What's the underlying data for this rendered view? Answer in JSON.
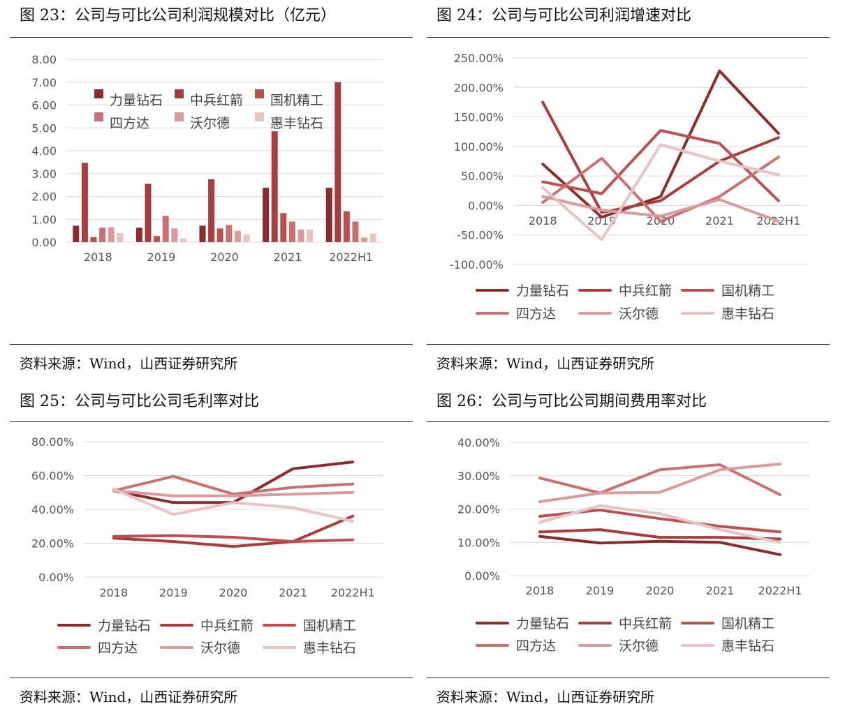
{
  "colors": {
    "s1": "#8b2b2b",
    "s2": "#a93c3c",
    "s3": "#bc5050",
    "s4": "#c97070",
    "s5": "#d99b9b",
    "s6": "#e8c3c3",
    "grid": "#d9d9d9"
  },
  "figures": [
    {
      "title": "图 23：公司与可比公司利润规模对比（亿元）",
      "source": "资料来源：Wind，山西证券研究所",
      "chart_data": {
        "type": "bar",
        "categories": [
          "2018",
          "2019",
          "2020",
          "2021",
          "2022H1"
        ],
        "ylim": [
          0,
          8
        ],
        "ytick_labels": [
          "0.00",
          "1.00",
          "2.00",
          "3.00",
          "4.00",
          "5.00",
          "6.00",
          "7.00",
          "8.00"
        ],
        "series": [
          {
            "name": "力量钻石",
            "values": [
              0.72,
              0.63,
              0.72,
              2.38,
              2.38
            ]
          },
          {
            "name": "中兵红箭",
            "values": [
              3.47,
              2.55,
              2.75,
              4.85,
              7.0
            ]
          },
          {
            "name": "国机精工",
            "values": [
              0.22,
              0.27,
              0.6,
              1.27,
              1.35
            ]
          },
          {
            "name": "四方达",
            "values": [
              0.63,
              1.15,
              0.75,
              0.9,
              0.9
            ]
          },
          {
            "name": "沃尔德",
            "values": [
              0.65,
              0.6,
              0.5,
              0.55,
              0.2
            ]
          },
          {
            "name": "惠丰钻石",
            "values": [
              0.4,
              0.15,
              0.33,
              0.55,
              0.37
            ]
          }
        ],
        "xlabel": "",
        "ylabel": ""
      }
    },
    {
      "title": "图 24：公司与可比公司利润增速对比",
      "source": "资料来源：Wind，山西证券研究所",
      "chart_data": {
        "type": "line",
        "categories": [
          "2018",
          "2019",
          "2020",
          "2021",
          "2022H1"
        ],
        "ylim": [
          -100,
          250
        ],
        "ytick_labels": [
          "-100.00%",
          "-50.00%",
          "0.00%",
          "50.00%",
          "100.00%",
          "150.00%",
          "200.00%",
          "250.00%"
        ],
        "series": [
          {
            "name": "力量钻石",
            "values": [
              70,
              -20,
              15,
              228,
              122
            ]
          },
          {
            "name": "中兵红箭",
            "values": [
              175,
              -12,
              8,
              75,
              115
            ]
          },
          {
            "name": "国机精工",
            "values": [
              40,
              20,
              127,
              105,
              8
            ]
          },
          {
            "name": "四方达",
            "values": [
              5,
              80,
              -27,
              15,
              82
            ]
          },
          {
            "name": "沃尔德",
            "values": [
              15,
              -8,
              -18,
              10,
              -27
            ]
          },
          {
            "name": "惠丰钻石",
            "values": [
              30,
              -58,
              103,
              75,
              52
            ]
          }
        ],
        "xlabel": "",
        "ylabel": ""
      }
    },
    {
      "title": "图 25：公司与可比公司毛利率对比",
      "source": "资料来源：Wind，山西证券研究所",
      "chart_data": {
        "type": "line",
        "categories": [
          "2018",
          "2019",
          "2020",
          "2021",
          "2022H1"
        ],
        "ylim": [
          0,
          80
        ],
        "ytick_labels": [
          "0.00%",
          "20.00%",
          "40.00%",
          "60.00%",
          "80.00%"
        ],
        "series": [
          {
            "name": "力量钻石",
            "values": [
              51,
              44,
              44,
              64,
              68
            ]
          },
          {
            "name": "中兵红箭",
            "values": [
              23,
              21,
              18,
              21,
              36
            ]
          },
          {
            "name": "国机精工",
            "values": [
              24,
              24.5,
              23.5,
              21,
              22
            ]
          },
          {
            "name": "四方达",
            "values": [
              51,
              59.5,
              49,
              53,
              55
            ]
          },
          {
            "name": "沃尔德",
            "values": [
              51,
              48,
              48,
              49,
              50
            ]
          },
          {
            "name": "惠丰钻石",
            "values": [
              52,
              37,
              44,
              41,
              33
            ]
          }
        ],
        "xlabel": "",
        "ylabel": ""
      }
    },
    {
      "title": "图 26：公司与可比公司期间费用率对比",
      "source": "资料来源：Wind，山西证券研究所",
      "chart_data": {
        "type": "line",
        "categories": [
          "2018",
          "2019",
          "2020",
          "2021",
          "2022H1"
        ],
        "ylim": [
          0,
          40
        ],
        "ytick_labels": [
          "0.00%",
          "10.00%",
          "20.00%",
          "30.00%",
          "40.00%"
        ],
        "series": [
          {
            "name": "力量钻石",
            "values": [
              11.8,
              9.8,
              10.3,
              10,
              6.3
            ]
          },
          {
            "name": "中兵红箭",
            "values": [
              13.1,
              13.8,
              11.5,
              11.5,
              11
            ]
          },
          {
            "name": "国机精工",
            "values": [
              17.8,
              19.7,
              17.1,
              14.8,
              13.1
            ]
          },
          {
            "name": "四方达",
            "values": [
              29.3,
              24.8,
              31.8,
              33.3,
              24.3
            ]
          },
          {
            "name": "沃尔德",
            "values": [
              22.2,
              24.8,
              25,
              31.8,
              33.5
            ]
          },
          {
            "name": "惠丰钻石",
            "values": [
              16,
              21,
              18.6,
              13.8,
              10
            ]
          }
        ],
        "xlabel": "",
        "ylabel": ""
      }
    }
  ]
}
